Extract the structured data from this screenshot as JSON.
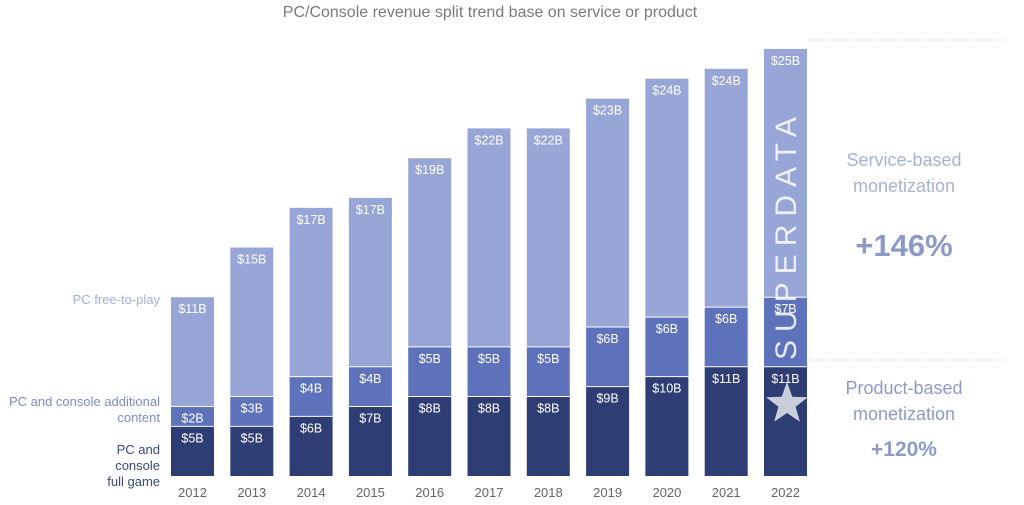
{
  "chart_data": {
    "type": "bar",
    "stacked": true,
    "title": "PC/Console revenue split trend base on service or product",
    "categories": [
      "2012",
      "2013",
      "2014",
      "2015",
      "2016",
      "2017",
      "2018",
      "2019",
      "2020",
      "2021",
      "2022"
    ],
    "series": [
      {
        "name": "PC and console full game",
        "color": "#2e3d73",
        "values": [
          5,
          5,
          6,
          7,
          8,
          8,
          8,
          9,
          10,
          11,
          11
        ],
        "labels": [
          "$5B",
          "$5B",
          "$6B",
          "$7B",
          "$8B",
          "$8B",
          "$8B",
          "$9B",
          "$10B",
          "$11B",
          "$11B"
        ]
      },
      {
        "name": "PC and console additional content",
        "color": "#5d72ba",
        "values": [
          2,
          3,
          4,
          4,
          5,
          5,
          5,
          6,
          6,
          6,
          7
        ],
        "labels": [
          "$2B",
          "$3B",
          "$4B",
          "$4B",
          "$5B",
          "$5B",
          "$5B",
          "$6B",
          "$6B",
          "$6B",
          "$7B"
        ]
      },
      {
        "name": "PC free-to-play",
        "color": "#97a6d6",
        "values": [
          11,
          15,
          17,
          17,
          19,
          22,
          22,
          23,
          24,
          24,
          25
        ],
        "labels": [
          "$11B",
          "$15B",
          "$17B",
          "$17B",
          "$19B",
          "$22B",
          "$22B",
          "$23B",
          "$24B",
          "$24B",
          "$25B"
        ]
      }
    ],
    "legend_placement": "left",
    "ylim": [
      0,
      44
    ]
  },
  "annotations": {
    "service": {
      "line1": "Service-based",
      "line2": "monetization",
      "pct": "+146%"
    },
    "product": {
      "line1": "Product-based",
      "line2": "monetization",
      "pct": "+120%"
    }
  },
  "watermark": "SUPERDATA",
  "colors": {
    "legend_text": [
      "#3a4a7e",
      "#7d8cc4",
      "#a3b0db"
    ],
    "label_text": "#ffffff",
    "axis_text": "#666666",
    "accent_light": "#a8b2d2",
    "accent_dark": "#8d9ac8"
  }
}
